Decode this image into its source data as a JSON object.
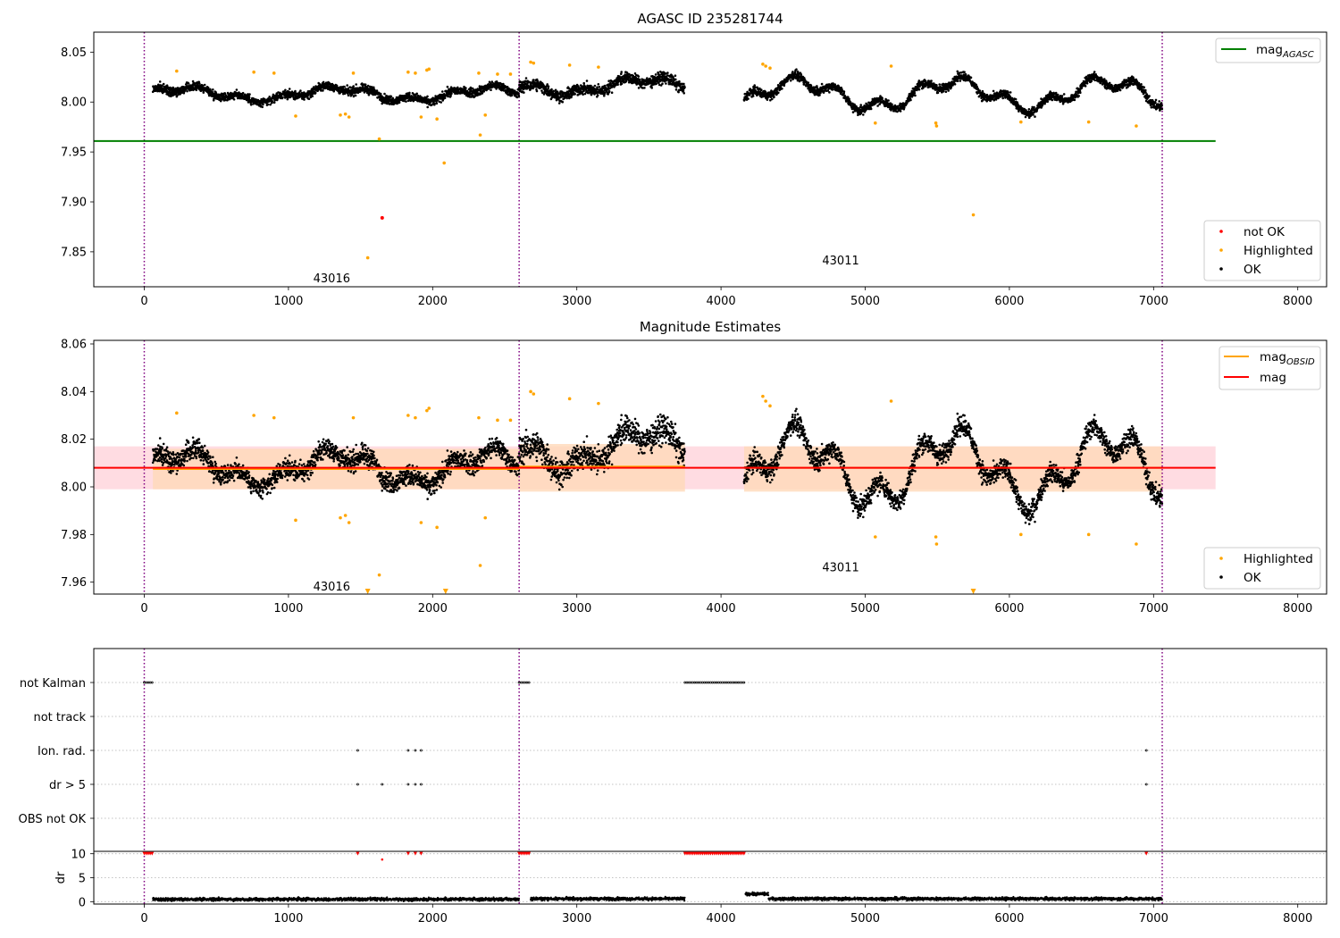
{
  "colors": {
    "ok": "#000000",
    "highlighted": "#ffa500",
    "not_ok": "#ff0000",
    "mag_agasc": "#008000",
    "mag_obsid": "#ffa500",
    "mag": "#ff0000",
    "band_red": "#ffc0cb",
    "band_orange": "#ffdab9",
    "obs_boundary": "#800080",
    "grid": "#b0b0b0"
  },
  "chart_data": [
    {
      "type": "scatter",
      "title": "AGASC ID 235281744",
      "xlim": [
        -350,
        8200
      ],
      "ylim": [
        7.815,
        8.07
      ],
      "xticks": [
        0,
        1000,
        2000,
        3000,
        4000,
        5000,
        6000,
        7000,
        8000
      ],
      "xtick_labels": [
        "0",
        "1000",
        "2000",
        "3000",
        "4000",
        "5000",
        "6000",
        "7000",
        "8000"
      ],
      "yticks": [
        7.85,
        7.9,
        7.95,
        8.0,
        8.05
      ],
      "ytick_labels": [
        "7.85",
        "7.90",
        "7.95",
        "8.00",
        "8.05"
      ],
      "mag_agasc": 7.961,
      "mag_agasc_xrange": [
        -350,
        7430
      ],
      "obs_boundaries": [
        0,
        2600,
        7060
      ],
      "obsids": [
        {
          "label": "43016",
          "x": 1300,
          "y": 7.823
        },
        {
          "label": "43011",
          "x": 4830,
          "y": 7.841
        }
      ],
      "series_ok": {
        "name": "OK",
        "segments": [
          {
            "x0": 60,
            "x1": 2600,
            "base": 8.008,
            "amp": 0.006,
            "noise": 0.012
          },
          {
            "x0": 2600,
            "x1": 3750,
            "base": 8.016,
            "amp": 0.007,
            "noise": 0.016
          },
          {
            "x0": 4160,
            "x1": 7060,
            "base": 8.008,
            "amp": 0.013,
            "noise": 0.012
          }
        ]
      },
      "series_highlighted": {
        "name": "Highlighted",
        "points": [
          [
            225,
            8.031
          ],
          [
            760,
            8.03
          ],
          [
            900,
            8.029
          ],
          [
            1050,
            7.986
          ],
          [
            1360,
            7.987
          ],
          [
            1395,
            7.988
          ],
          [
            1420,
            7.985
          ],
          [
            1450,
            8.029
          ],
          [
            1630,
            7.963
          ],
          [
            1830,
            8.03
          ],
          [
            1880,
            8.029
          ],
          [
            1920,
            7.985
          ],
          [
            1960,
            8.032
          ],
          [
            1975,
            8.033
          ],
          [
            2030,
            7.983
          ],
          [
            2080,
            7.939
          ],
          [
            2320,
            8.029
          ],
          [
            2330,
            7.967
          ],
          [
            2365,
            7.987
          ],
          [
            2450,
            8.028
          ],
          [
            2540,
            8.028
          ],
          [
            2680,
            8.04
          ],
          [
            2700,
            8.039
          ],
          [
            2950,
            8.037
          ],
          [
            3150,
            8.035
          ],
          [
            4290,
            8.038
          ],
          [
            4310,
            8.036
          ],
          [
            4340,
            8.034
          ],
          [
            5070,
            7.979
          ],
          [
            5180,
            8.036
          ],
          [
            5490,
            7.979
          ],
          [
            5495,
            7.976
          ],
          [
            5750,
            7.887
          ],
          [
            6080,
            7.98
          ],
          [
            6550,
            7.98
          ],
          [
            6880,
            7.976
          ],
          [
            1550,
            7.844
          ]
        ]
      },
      "series_not_ok": {
        "name": "not OK",
        "points": [
          [
            1650,
            7.884
          ]
        ]
      },
      "legend_lines": [
        {
          "label": "mag",
          "sub": "AGASC"
        }
      ],
      "legend_points": [
        "not OK",
        "Highlighted",
        "OK"
      ]
    },
    {
      "type": "scatter",
      "title": "Magnitude Estimates",
      "xlim": [
        -350,
        8200
      ],
      "ylim": [
        7.955,
        8.0615
      ],
      "xticks": [
        0,
        1000,
        2000,
        3000,
        4000,
        5000,
        6000,
        7000,
        8000
      ],
      "xtick_labels": [
        "0",
        "1000",
        "2000",
        "3000",
        "4000",
        "5000",
        "6000",
        "7000",
        "8000"
      ],
      "yticks": [
        7.96,
        7.98,
        8.0,
        8.02,
        8.04,
        8.06
      ],
      "ytick_labels": [
        "7.96",
        "7.98",
        "8.00",
        "8.02",
        "8.04",
        "8.06"
      ],
      "mag": 8.008,
      "mag_band": [
        7.999,
        8.017
      ],
      "mag_xrange": [
        -350,
        7430
      ],
      "mag_obsid": [
        {
          "x0": 60,
          "x1": 2600,
          "value": 8.0075,
          "band": [
            7.999,
            8.016
          ]
        },
        {
          "x0": 2600,
          "x1": 3750,
          "value": 8.0085,
          "band": [
            7.998,
            8.018
          ]
        },
        {
          "x0": 4160,
          "x1": 7060,
          "value": 8.008,
          "band": [
            7.998,
            8.017
          ]
        }
      ],
      "obs_boundaries": [
        0,
        2600,
        7060
      ],
      "obsids": [
        {
          "label": "43016",
          "x": 1300,
          "y": 7.958
        },
        {
          "label": "43011",
          "x": 4830,
          "y": 7.966
        }
      ],
      "offscale_markers": [
        1550,
        2090,
        5750
      ],
      "legend_lines": [
        {
          "label": "mag",
          "sub": "OBSID"
        },
        {
          "label": "mag",
          "sub": ""
        }
      ],
      "legend_points": [
        "Highlighted",
        "OK"
      ]
    },
    {
      "type": "scatter",
      "title": "",
      "xlim": [
        -350,
        8200
      ],
      "xticks": [
        0,
        1000,
        2000,
        3000,
        4000,
        5000,
        6000,
        7000,
        8000
      ],
      "xtick_labels": [
        "0",
        "1000",
        "2000",
        "3000",
        "4000",
        "5000",
        "6000",
        "7000",
        "8000"
      ],
      "flag_rows": [
        "not Kalman",
        "not track",
        "Ion. rad.",
        "dr > 5",
        "OBS not OK"
      ],
      "flags": {
        "not Kalman": [
          [
            0,
            60
          ],
          [
            2600,
            2680
          ],
          [
            3750,
            4170
          ]
        ],
        "not track": [],
        "Ion. rad.": [
          [
            1480,
            1480
          ],
          [
            1830,
            1830
          ],
          [
            1880,
            1880
          ],
          [
            1920,
            1920
          ],
          [
            6950,
            6950
          ]
        ],
        "dr > 5": [
          [
            1480,
            1480
          ],
          [
            1650,
            1650
          ],
          [
            1830,
            1830
          ],
          [
            1880,
            1880
          ],
          [
            1920,
            1920
          ],
          [
            6950,
            6950
          ]
        ],
        "OBS not OK": []
      },
      "obs_boundaries": [
        0,
        2600,
        7060
      ],
      "dr": {
        "ylabel": "dr",
        "ylim": [
          -0.5,
          10.5
        ],
        "yticks": [
          0,
          5,
          10
        ],
        "ytick_labels": [
          "0",
          "5",
          "10"
        ],
        "clipped_points": [
          [
            0,
            60
          ],
          [
            2600,
            2680
          ],
          [
            3750,
            4170
          ],
          [
            1480,
            1480
          ],
          [
            1830,
            1830
          ],
          [
            1880,
            1880
          ],
          [
            1920,
            1920
          ],
          [
            6950,
            6950
          ]
        ],
        "low_point": [
          1650,
          8.8
        ],
        "segments": [
          {
            "x0": 60,
            "x1": 2600,
            "base": 0.5,
            "noise": 0.5
          },
          {
            "x0": 2680,
            "x1": 3750,
            "base": 0.6,
            "noise": 0.5
          },
          {
            "x0": 4170,
            "x1": 4330,
            "base": 1.6,
            "noise": 0.5
          },
          {
            "x0": 4330,
            "x1": 7060,
            "base": 0.6,
            "noise": 0.5
          }
        ]
      }
    }
  ]
}
